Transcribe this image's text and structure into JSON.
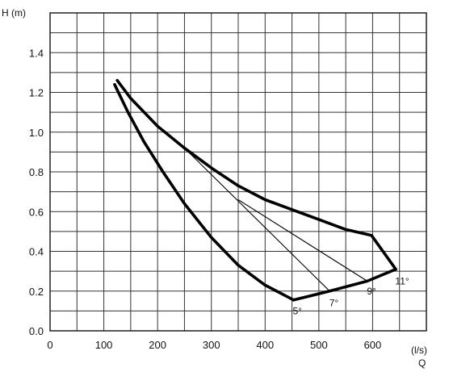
{
  "chart_data": {
    "type": "line",
    "title": "",
    "ylabel": "H (m)",
    "xlabel": "Q",
    "xunit": "(l/s)",
    "xlim": [
      0,
      700
    ],
    "ylim": [
      0,
      1.6
    ],
    "xticks": [
      0,
      100,
      200,
      300,
      400,
      500,
      600
    ],
    "yticks": [
      0.0,
      0.2,
      0.4,
      0.6,
      0.8,
      1.0,
      1.2,
      1.4
    ],
    "xtick_labels": [
      "0",
      "100",
      "200",
      "300",
      "400",
      "500",
      "600"
    ],
    "ytick_labels": [
      "0.0",
      "0.2",
      "0.4",
      "0.6",
      "0.8",
      "1.0",
      "1.2",
      "1.4"
    ],
    "grid": true,
    "x_grid_step": 50,
    "y_grid_step": 0.1,
    "series": [
      {
        "name": "5°",
        "style": "thick",
        "points": [
          [
            120,
            1.24
          ],
          [
            145,
            1.1
          ],
          [
            175,
            0.95
          ],
          [
            210,
            0.8
          ],
          [
            250,
            0.64
          ],
          [
            300,
            0.47
          ],
          [
            350,
            0.33
          ],
          [
            400,
            0.23
          ],
          [
            453,
            0.155
          ]
        ]
      },
      {
        "name": "7°",
        "style": "thin",
        "points": [
          [
            250,
            0.92
          ],
          [
            520,
            0.2
          ]
        ]
      },
      {
        "name": "9°",
        "style": "thin",
        "points": [
          [
            350,
            0.66
          ],
          [
            590,
            0.25
          ]
        ]
      },
      {
        "name": "11°",
        "style": "thick",
        "points": [
          [
            125,
            1.26
          ],
          [
            150,
            1.17
          ],
          [
            200,
            1.03
          ],
          [
            250,
            0.92
          ],
          [
            300,
            0.82
          ],
          [
            350,
            0.73
          ],
          [
            400,
            0.66
          ],
          [
            450,
            0.61
          ],
          [
            500,
            0.56
          ],
          [
            550,
            0.51
          ],
          [
            598,
            0.48
          ],
          [
            643,
            0.31
          ]
        ]
      },
      {
        "name": "",
        "style": "thick",
        "points": [
          [
            453,
            0.155
          ],
          [
            520,
            0.2
          ],
          [
            590,
            0.25
          ],
          [
            643,
            0.31
          ]
        ]
      }
    ],
    "annotations": [
      {
        "text": "5°",
        "x": 460,
        "y": 0.1
      },
      {
        "text": "7°",
        "x": 528,
        "y": 0.14
      },
      {
        "text": "9°",
        "x": 598,
        "y": 0.2
      },
      {
        "text": "11°",
        "x": 655,
        "y": 0.25
      }
    ]
  }
}
